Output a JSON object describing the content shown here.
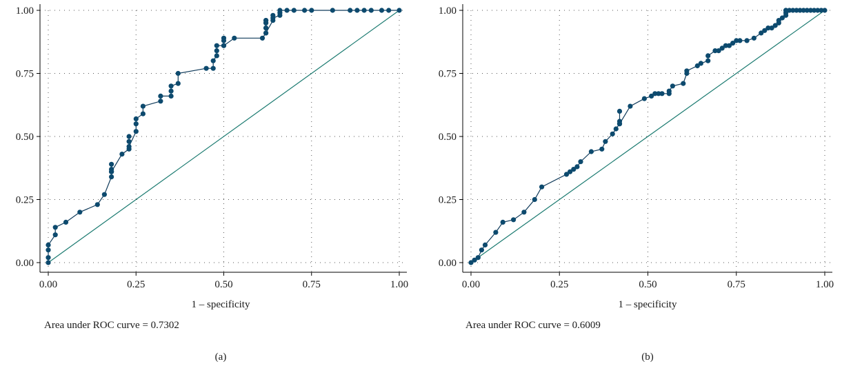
{
  "chart_data": [
    {
      "type": "line",
      "panel_label": "(a)",
      "xlabel": "1 – specificity",
      "auc_text": "Area under ROC curve = 0.7302",
      "xlim": [
        0,
        1
      ],
      "ylim": [
        0,
        1
      ],
      "x_ticks": [
        "0.00",
        "0.25",
        "0.50",
        "0.75",
        "1.00"
      ],
      "y_ticks": [
        "0.00",
        "0.25",
        "0.50",
        "0.75",
        "1.00"
      ],
      "grid": true,
      "series": [
        {
          "x": [
            0,
            0,
            0,
            0,
            0.02,
            0.02,
            0.05,
            0.09,
            0.14,
            0.16,
            0.18,
            0.18,
            0.18,
            0.18,
            0.18,
            0.21,
            0.23,
            0.23,
            0.23,
            0.23,
            0.25,
            0.25,
            0.25,
            0.27,
            0.27,
            0.32,
            0.32,
            0.35,
            0.35,
            0.35,
            0.37,
            0.37,
            0.45,
            0.47,
            0.47,
            0.48,
            0.48,
            0.48,
            0.5,
            0.5,
            0.5,
            0.5,
            0.53,
            0.61,
            0.62,
            0.62,
            0.62,
            0.62,
            0.62,
            0.62,
            0.62,
            0.62,
            0.64,
            0.64,
            0.64,
            0.66,
            0.66,
            0.66,
            0.68,
            0.7,
            0.73,
            0.75,
            0.81,
            0.86,
            0.88,
            0.9,
            0.92,
            0.95,
            0.97,
            1.0
          ],
          "y": [
            0,
            0.02,
            0.05,
            0.07,
            0.11,
            0.14,
            0.16,
            0.2,
            0.23,
            0.27,
            0.34,
            0.36,
            0.37,
            0.39,
            0.36,
            0.43,
            0.45,
            0.48,
            0.5,
            0.46,
            0.52,
            0.55,
            0.57,
            0.59,
            0.62,
            0.64,
            0.66,
            0.66,
            0.68,
            0.7,
            0.71,
            0.75,
            0.77,
            0.77,
            0.8,
            0.82,
            0.84,
            0.86,
            0.86,
            0.88,
            0.89,
            0.86,
            0.89,
            0.89,
            0.91,
            0.93,
            0.95,
            0.96,
            0.96,
            0.95,
            0.93,
            0.91,
            0.96,
            0.98,
            0.97,
            0.98,
            0.99,
            1.0,
            1.0,
            1.0,
            1.0,
            1.0,
            1.0,
            1.0,
            1.0,
            1.0,
            1.0,
            1.0,
            1.0,
            1.0
          ]
        },
        {
          "x": [
            0,
            1
          ],
          "y": [
            0,
            1
          ]
        }
      ]
    },
    {
      "type": "line",
      "panel_label": "(b)",
      "xlabel": "1 – specificity",
      "auc_text": "Area under ROC curve = 0.6009",
      "xlim": [
        0,
        1
      ],
      "ylim": [
        0,
        1
      ],
      "x_ticks": [
        "0.00",
        "0.25",
        "0.50",
        "0.75",
        "1.00"
      ],
      "y_ticks": [
        "0.00",
        "0.25",
        "0.50",
        "0.75",
        "1.00"
      ],
      "grid": true,
      "series": [
        {
          "x": [
            0,
            0.01,
            0.02,
            0.03,
            0.04,
            0.07,
            0.09,
            0.12,
            0.15,
            0.18,
            0.2,
            0.27,
            0.28,
            0.29,
            0.3,
            0.31,
            0.34,
            0.37,
            0.38,
            0.4,
            0.41,
            0.42,
            0.42,
            0.42,
            0.42,
            0.45,
            0.49,
            0.51,
            0.52,
            0.53,
            0.54,
            0.56,
            0.56,
            0.57,
            0.6,
            0.61,
            0.61,
            0.64,
            0.65,
            0.67,
            0.67,
            0.69,
            0.7,
            0.71,
            0.72,
            0.73,
            0.74,
            0.75,
            0.76,
            0.78,
            0.8,
            0.82,
            0.83,
            0.84,
            0.85,
            0.86,
            0.87,
            0.87,
            0.88,
            0.89,
            0.89,
            0.89,
            0.89,
            0.9,
            0.91,
            0.92,
            0.93,
            0.94,
            0.95,
            0.96,
            0.97,
            0.98,
            0.99,
            1.0
          ],
          "y": [
            0,
            0.01,
            0.02,
            0.05,
            0.07,
            0.12,
            0.16,
            0.17,
            0.2,
            0.25,
            0.3,
            0.35,
            0.36,
            0.37,
            0.38,
            0.4,
            0.44,
            0.45,
            0.48,
            0.51,
            0.53,
            0.55,
            0.56,
            0.6,
            0.55,
            0.62,
            0.65,
            0.66,
            0.67,
            0.67,
            0.67,
            0.67,
            0.68,
            0.7,
            0.71,
            0.75,
            0.76,
            0.78,
            0.79,
            0.8,
            0.82,
            0.84,
            0.84,
            0.85,
            0.86,
            0.86,
            0.87,
            0.88,
            0.88,
            0.88,
            0.89,
            0.91,
            0.92,
            0.93,
            0.93,
            0.94,
            0.95,
            0.96,
            0.97,
            0.98,
            0.99,
            1.0,
            1.0,
            1.0,
            1.0,
            1.0,
            1.0,
            1.0,
            1.0,
            1.0,
            1.0,
            1.0,
            1.0,
            1.0
          ]
        },
        {
          "x": [
            0,
            1
          ],
          "y": [
            0,
            1
          ]
        }
      ]
    }
  ]
}
